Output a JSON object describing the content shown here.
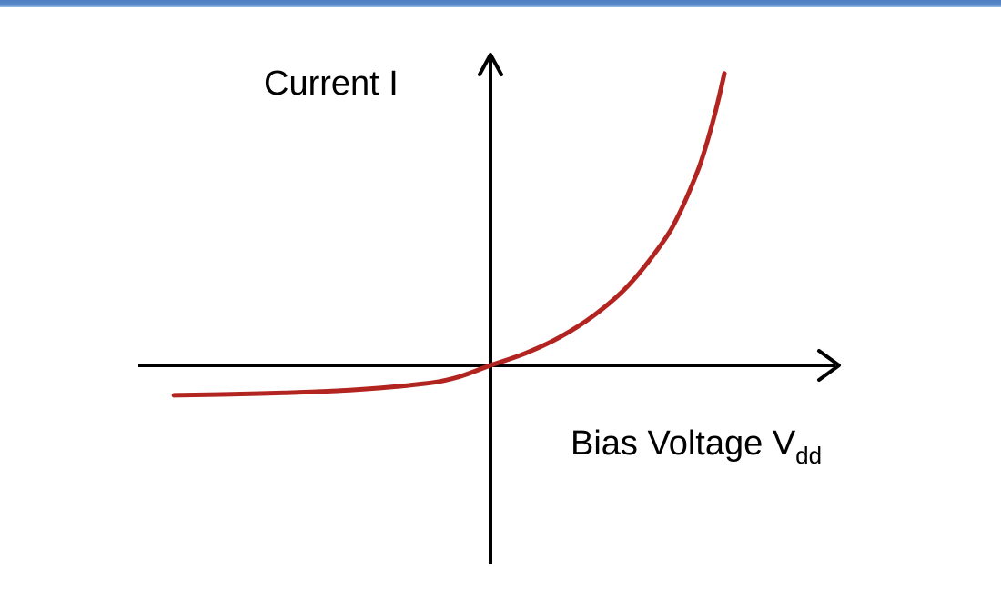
{
  "chart_data": {
    "type": "line",
    "title": "",
    "ylabel": "Current I",
    "xlabel_main": "Bias Voltage V",
    "xlabel_subscript": "dd",
    "grid": false,
    "legend": "none",
    "ticks": "none",
    "xlim": [
      -1.0,
      1.0
    ],
    "ylim": [
      -0.6,
      1.0
    ],
    "series": [
      {
        "x": [
          -0.92,
          -0.8,
          -0.6,
          -0.4,
          -0.2,
          -0.1,
          0.0,
          0.1,
          0.2,
          0.3,
          0.4,
          0.5,
          0.55,
          0.6,
          0.62,
          0.64,
          0.66,
          0.68
        ],
        "y": [
          -0.09,
          -0.088,
          -0.083,
          -0.074,
          -0.056,
          -0.037,
          0.0,
          0.036,
          0.084,
          0.15,
          0.24,
          0.37,
          0.46,
          0.58,
          0.64,
          0.71,
          0.79,
          0.88
        ]
      }
    ],
    "colors": {
      "curve": "#b22420",
      "axes": "#000000",
      "top_bar": "#5b8bcc"
    }
  }
}
